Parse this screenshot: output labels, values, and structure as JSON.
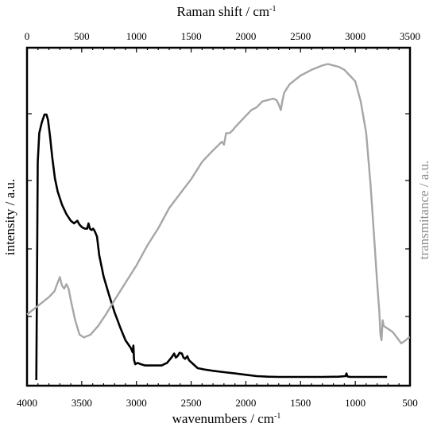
{
  "chart_data": {
    "type": "line",
    "axes": {
      "top": {
        "title": "Raman shift / cm",
        "title_sup": "-1",
        "range": [
          0,
          3500
        ],
        "ticks": [
          0,
          500,
          1000,
          1500,
          2000,
          2500,
          3000,
          3500
        ]
      },
      "bottom": {
        "title": "wavenumbers / cm",
        "title_sup": "-1",
        "range": [
          4000,
          500
        ],
        "ticks": [
          4000,
          3500,
          3000,
          2500,
          2000,
          1500,
          1000,
          500
        ]
      },
      "left": {
        "title": "intensity / a.u."
      },
      "right": {
        "title": "transmitance / a.u."
      }
    },
    "grid": false,
    "series": [
      {
        "axis": "raman",
        "color": "#000000",
        "points": [
          [
            85,
            0.0
          ],
          [
            90,
            0.3
          ],
          [
            98,
            0.82
          ],
          [
            112,
            0.93
          ],
          [
            135,
            0.97
          ],
          [
            160,
            1.0
          ],
          [
            178,
            1.0
          ],
          [
            192,
            0.98
          ],
          [
            210,
            0.92
          ],
          [
            230,
            0.84
          ],
          [
            255,
            0.76
          ],
          [
            280,
            0.71
          ],
          [
            320,
            0.66
          ],
          [
            360,
            0.625
          ],
          [
            400,
            0.6
          ],
          [
            430,
            0.59
          ],
          [
            460,
            0.6
          ],
          [
            480,
            0.585
          ],
          [
            505,
            0.575
          ],
          [
            530,
            0.57
          ],
          [
            550,
            0.57
          ],
          [
            562,
            0.59
          ],
          [
            575,
            0.57
          ],
          [
            590,
            0.565
          ],
          [
            605,
            0.57
          ],
          [
            620,
            0.56
          ],
          [
            640,
            0.54
          ],
          [
            660,
            0.47
          ],
          [
            700,
            0.39
          ],
          [
            750,
            0.32
          ],
          [
            800,
            0.255
          ],
          [
            850,
            0.2
          ],
          [
            900,
            0.15
          ],
          [
            950,
            0.12
          ],
          [
            965,
            0.105
          ],
          [
            972,
            0.13
          ],
          [
            978,
            0.075
          ],
          [
            990,
            0.06
          ],
          [
            1010,
            0.065
          ],
          [
            1040,
            0.06
          ],
          [
            1080,
            0.055
          ],
          [
            1120,
            0.055
          ],
          [
            1180,
            0.055
          ],
          [
            1230,
            0.055
          ],
          [
            1280,
            0.065
          ],
          [
            1320,
            0.085
          ],
          [
            1345,
            0.1
          ],
          [
            1360,
            0.085
          ],
          [
            1375,
            0.09
          ],
          [
            1395,
            0.103
          ],
          [
            1415,
            0.1
          ],
          [
            1430,
            0.085
          ],
          [
            1445,
            0.08
          ],
          [
            1465,
            0.09
          ],
          [
            1480,
            0.075
          ],
          [
            1520,
            0.06
          ],
          [
            1560,
            0.045
          ],
          [
            1620,
            0.04
          ],
          [
            1700,
            0.035
          ],
          [
            1800,
            0.03
          ],
          [
            1900,
            0.025
          ],
          [
            2000,
            0.02
          ],
          [
            2100,
            0.015
          ],
          [
            2200,
            0.013
          ],
          [
            2300,
            0.012
          ],
          [
            2500,
            0.012
          ],
          [
            2700,
            0.012
          ],
          [
            2850,
            0.013
          ],
          [
            2910,
            0.015
          ],
          [
            2920,
            0.025
          ],
          [
            2928,
            0.014
          ],
          [
            2950,
            0.012
          ],
          [
            3150,
            0.012
          ],
          [
            3290,
            0.012
          ]
        ]
      },
      {
        "axis": "ftir",
        "color": "#a6a6a6",
        "points": [
          [
            4000,
            0.17
          ],
          [
            3900,
            0.2
          ],
          [
            3800,
            0.23
          ],
          [
            3750,
            0.25
          ],
          [
            3720,
            0.28
          ],
          [
            3700,
            0.3
          ],
          [
            3680,
            0.27
          ],
          [
            3660,
            0.26
          ],
          [
            3640,
            0.275
          ],
          [
            3620,
            0.26
          ],
          [
            3600,
            0.22
          ],
          [
            3560,
            0.15
          ],
          [
            3520,
            0.1
          ],
          [
            3480,
            0.09
          ],
          [
            3420,
            0.1
          ],
          [
            3350,
            0.13
          ],
          [
            3280,
            0.17
          ],
          [
            3200,
            0.22
          ],
          [
            3100,
            0.28
          ],
          [
            3000,
            0.34
          ],
          [
            2900,
            0.41
          ],
          [
            2800,
            0.47
          ],
          [
            2700,
            0.54
          ],
          [
            2600,
            0.59
          ],
          [
            2500,
            0.64
          ],
          [
            2400,
            0.7
          ],
          [
            2300,
            0.74
          ],
          [
            2220,
            0.77
          ],
          [
            2200,
            0.76
          ],
          [
            2180,
            0.8
          ],
          [
            2150,
            0.8
          ],
          [
            2120,
            0.81
          ],
          [
            2100,
            0.82
          ],
          [
            2050,
            0.84
          ],
          [
            2000,
            0.86
          ],
          [
            1950,
            0.88
          ],
          [
            1900,
            0.89
          ],
          [
            1850,
            0.91
          ],
          [
            1800,
            0.915
          ],
          [
            1750,
            0.92
          ],
          [
            1720,
            0.915
          ],
          [
            1700,
            0.9
          ],
          [
            1690,
            0.89
          ],
          [
            1680,
            0.88
          ],
          [
            1670,
            0.905
          ],
          [
            1650,
            0.94
          ],
          [
            1600,
            0.97
          ],
          [
            1500,
            1.0
          ],
          [
            1400,
            1.02
          ],
          [
            1300,
            1.035
          ],
          [
            1250,
            1.04
          ],
          [
            1200,
            1.035
          ],
          [
            1150,
            1.03
          ],
          [
            1100,
            1.02
          ],
          [
            1050,
            1.0
          ],
          [
            1000,
            0.98
          ],
          [
            950,
            0.91
          ],
          [
            900,
            0.8
          ],
          [
            860,
            0.62
          ],
          [
            830,
            0.45
          ],
          [
            800,
            0.28
          ],
          [
            780,
            0.18
          ],
          [
            770,
            0.1
          ],
          [
            760,
            0.08
          ],
          [
            750,
            0.15
          ],
          [
            740,
            0.13
          ],
          [
            700,
            0.12
          ],
          [
            660,
            0.11
          ],
          [
            620,
            0.09
          ],
          [
            580,
            0.07
          ],
          [
            540,
            0.08
          ],
          [
            510,
            0.09
          ],
          [
            500,
            0.09
          ]
        ]
      }
    ]
  }
}
